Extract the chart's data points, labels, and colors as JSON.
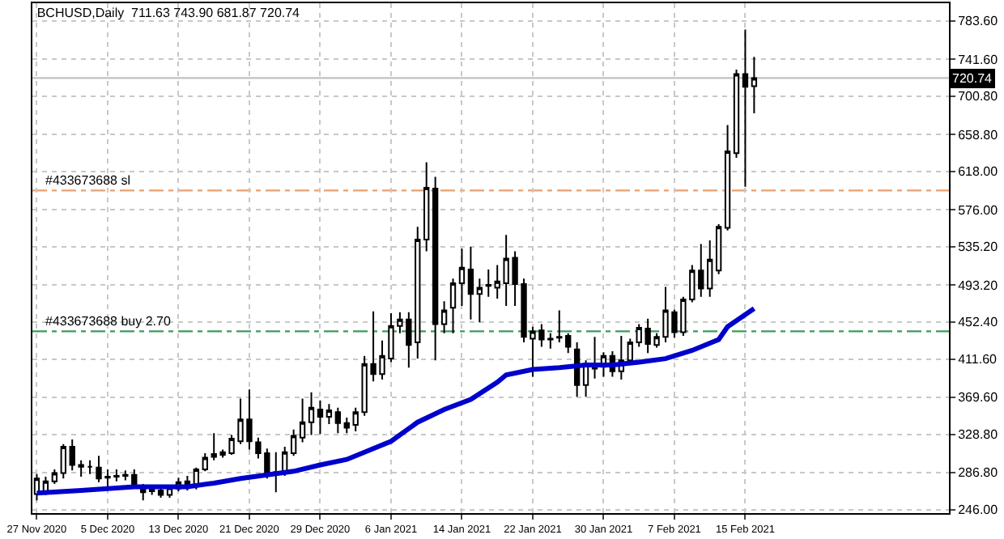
{
  "chart_data": {
    "type": "candlestick",
    "title": "BCHUSD,Daily  711.63 743.90 681.87 720.74",
    "x": [
      "2020-11-27",
      "2020-11-28",
      "2020-11-29",
      "2020-11-30",
      "2020-12-01",
      "2020-12-02",
      "2020-12-03",
      "2020-12-04",
      "2020-12-05",
      "2020-12-06",
      "2020-12-07",
      "2020-12-08",
      "2020-12-09",
      "2020-12-10",
      "2020-12-11",
      "2020-12-12",
      "2020-12-13",
      "2020-12-14",
      "2020-12-15",
      "2020-12-16",
      "2020-12-17",
      "2020-12-18",
      "2020-12-19",
      "2020-12-20",
      "2020-12-21",
      "2020-12-22",
      "2020-12-23",
      "2020-12-24",
      "2020-12-25",
      "2020-12-26",
      "2020-12-27",
      "2020-12-28",
      "2020-12-29",
      "2020-12-30",
      "2020-12-31",
      "2021-01-01",
      "2021-01-02",
      "2021-01-03",
      "2021-01-04",
      "2021-01-05",
      "2021-01-06",
      "2021-01-07",
      "2021-01-08",
      "2021-01-09",
      "2021-01-10",
      "2021-01-11",
      "2021-01-12",
      "2021-01-13",
      "2021-01-14",
      "2021-01-15",
      "2021-01-16",
      "2021-01-17",
      "2021-01-18",
      "2021-01-19",
      "2021-01-20",
      "2021-01-21",
      "2021-01-22",
      "2021-01-23",
      "2021-01-24",
      "2021-01-25",
      "2021-01-26",
      "2021-01-27",
      "2021-01-28",
      "2021-01-29",
      "2021-01-30",
      "2021-01-31",
      "2021-02-01",
      "2021-02-02",
      "2021-02-03",
      "2021-02-04",
      "2021-02-05",
      "2021-02-06",
      "2021-02-07",
      "2021-02-08",
      "2021-02-09",
      "2021-02-10",
      "2021-02-11",
      "2021-02-12",
      "2021-02-13",
      "2021-02-14",
      "2021-02-15",
      "2021-02-16"
    ],
    "ohlc": [
      [
        263,
        285,
        256,
        280
      ],
      [
        265,
        282,
        262,
        277
      ],
      [
        277,
        290,
        274,
        286
      ],
      [
        286,
        318,
        280,
        315
      ],
      [
        315,
        323,
        289,
        295
      ],
      [
        295,
        300,
        282,
        293
      ],
      [
        293,
        300,
        285,
        293
      ],
      [
        292,
        305,
        276,
        280
      ],
      [
        281,
        290,
        271,
        282
      ],
      [
        282,
        290,
        277,
        283
      ],
      [
        283,
        289,
        278,
        284
      ],
      [
        284,
        290,
        270,
        274
      ],
      [
        270,
        274,
        256,
        265
      ],
      [
        266,
        272,
        262,
        268
      ],
      [
        267,
        270,
        259,
        262
      ],
      [
        262,
        273,
        259,
        270
      ],
      [
        269,
        281,
        266,
        276
      ],
      [
        277,
        283,
        267,
        271
      ],
      [
        272,
        292,
        268,
        290
      ],
      [
        290,
        308,
        288,
        303
      ],
      [
        304,
        330,
        300,
        307
      ],
      [
        306,
        312,
        303,
        309
      ],
      [
        308,
        328,
        306,
        324
      ],
      [
        321,
        368,
        318,
        345
      ],
      [
        345,
        378,
        312,
        321
      ],
      [
        320,
        325,
        302,
        308
      ],
      [
        308,
        313,
        280,
        286
      ],
      [
        287,
        309,
        265,
        285
      ],
      [
        287,
        315,
        283,
        309
      ],
      [
        308,
        334,
        305,
        327
      ],
      [
        325,
        368,
        320,
        342
      ],
      [
        342,
        375,
        328,
        358
      ],
      [
        356,
        366,
        329,
        348
      ],
      [
        348,
        362,
        340,
        355
      ],
      [
        353,
        358,
        330,
        341
      ],
      [
        341,
        347,
        330,
        336
      ],
      [
        339,
        358,
        332,
        353
      ],
      [
        353,
        415,
        349,
        406
      ],
      [
        406,
        464,
        387,
        395
      ],
      [
        395,
        432,
        389,
        415
      ],
      [
        412,
        462,
        408,
        448
      ],
      [
        448,
        463,
        440,
        455
      ],
      [
        455,
        463,
        402,
        427
      ],
      [
        430,
        557,
        412,
        543
      ],
      [
        543,
        628,
        530,
        600
      ],
      [
        599,
        612,
        410,
        450
      ],
      [
        450,
        475,
        440,
        465
      ],
      [
        468,
        500,
        440,
        495
      ],
      [
        495,
        533,
        470,
        512
      ],
      [
        510,
        535,
        455,
        483
      ],
      [
        483,
        500,
        452,
        490
      ],
      [
        492,
        510,
        480,
        493
      ],
      [
        490,
        515,
        478,
        497
      ],
      [
        495,
        548,
        470,
        522
      ],
      [
        523,
        530,
        470,
        494
      ],
      [
        494,
        500,
        430,
        436
      ],
      [
        434,
        447,
        392,
        442
      ],
      [
        443,
        450,
        425,
        433
      ],
      [
        433,
        440,
        423,
        434
      ],
      [
        436,
        465,
        430,
        435
      ],
      [
        437,
        440,
        418,
        425
      ],
      [
        422,
        430,
        370,
        383
      ],
      [
        383,
        410,
        370,
        406
      ],
      [
        401,
        436,
        390,
        404
      ],
      [
        403,
        419,
        392,
        415
      ],
      [
        415,
        420,
        392,
        398
      ],
      [
        398,
        437,
        389,
        410
      ],
      [
        410,
        434,
        408,
        430
      ],
      [
        430,
        450,
        425,
        446
      ],
      [
        445,
        456,
        418,
        428
      ],
      [
        427,
        440,
        424,
        436
      ],
      [
        436,
        491,
        430,
        465
      ],
      [
        463,
        466,
        435,
        441
      ],
      [
        441,
        480,
        437,
        477
      ],
      [
        477,
        515,
        474,
        509
      ],
      [
        509,
        538,
        480,
        489
      ],
      [
        489,
        542,
        480,
        521
      ],
      [
        509,
        560,
        505,
        557
      ],
      [
        556,
        669,
        553,
        640
      ],
      [
        638,
        730,
        633,
        725
      ],
      [
        725,
        774,
        601,
        711
      ],
      [
        711.63,
        743.9,
        681.87,
        720.74
      ]
    ],
    "series": [
      {
        "type": "line",
        "color": "#0000cc",
        "x": [
          "2020-11-27",
          "2020-12-02",
          "2020-12-08",
          "2020-12-14",
          "2020-12-17",
          "2020-12-20",
          "2020-12-23",
          "2020-12-26",
          "2020-12-29",
          "2021-01-01",
          "2021-01-03",
          "2021-01-06",
          "2021-01-09",
          "2021-01-12",
          "2021-01-15",
          "2021-01-18",
          "2021-01-19",
          "2021-01-22",
          "2021-01-25",
          "2021-01-28",
          "2021-01-31",
          "2021-02-03",
          "2021-02-06",
          "2021-02-09",
          "2021-02-12",
          "2021-02-13",
          "2021-02-16"
        ],
        "values": [
          264,
          267,
          271,
          271,
          275,
          280,
          284,
          288,
          295,
          301,
          309,
          321,
          342,
          356,
          367,
          386,
          394,
          400,
          402,
          405,
          405,
          408,
          412,
          421,
          433,
          447,
          467
        ]
      }
    ],
    "xlim": [
      "2020-11-26T12:00",
      "2021-03-10"
    ],
    "xticks": [
      {
        "value": "2020-11-27",
        "label": "27 Nov 2020"
      },
      {
        "value": "2020-12-05",
        "label": "5 Dec 2020"
      },
      {
        "value": "2020-12-13",
        "label": "13 Dec 2020"
      },
      {
        "value": "2020-12-21",
        "label": "21 Dec 2020"
      },
      {
        "value": "2020-12-29",
        "label": "29 Dec 2020"
      },
      {
        "value": "2021-01-06",
        "label": "6 Jan 2021"
      },
      {
        "value": "2021-01-14",
        "label": "14 Jan 2021"
      },
      {
        "value": "2021-01-22",
        "label": "22 Jan 2021"
      },
      {
        "value": "2021-01-30",
        "label": "30 Jan 2021"
      },
      {
        "value": "2021-02-07",
        "label": "7 Feb 2021"
      },
      {
        "value": "2021-02-15",
        "label": "15 Feb 2021"
      }
    ],
    "ylim": [
      242,
      803
    ],
    "yticks": [
      {
        "value": 246,
        "label": "246.00"
      },
      {
        "value": 286.8,
        "label": "286.80"
      },
      {
        "value": 328.8,
        "label": "328.80"
      },
      {
        "value": 369.6,
        "label": "369.60"
      },
      {
        "value": 411.6,
        "label": "411.60"
      },
      {
        "value": 452.4,
        "label": "452.40"
      },
      {
        "value": 493.2,
        "label": "493.20"
      },
      {
        "value": 535.2,
        "label": "535.20"
      },
      {
        "value": 576,
        "label": "576.00"
      },
      {
        "value": 618,
        "label": "618.00"
      },
      {
        "value": 658.8,
        "label": "658.80"
      },
      {
        "value": 700.8,
        "label": "700.80"
      },
      {
        "value": 741.6,
        "label": "741.60"
      },
      {
        "value": 783.6,
        "label": "783.60"
      }
    ],
    "ref_lines": [
      {
        "axis": "y",
        "value": 597,
        "label": "#433673688 sl",
        "color": "#e8a070",
        "line_style": "dashed"
      },
      {
        "axis": "y",
        "value": 442,
        "label": "#433673688 buy 2.70",
        "color": "#3c9a5a",
        "line_style": "dashed"
      },
      {
        "axis": "y",
        "value": 720.74,
        "label": "720.74",
        "color": "#c0c0c0",
        "line_style": "solid"
      }
    ],
    "grid": true
  }
}
